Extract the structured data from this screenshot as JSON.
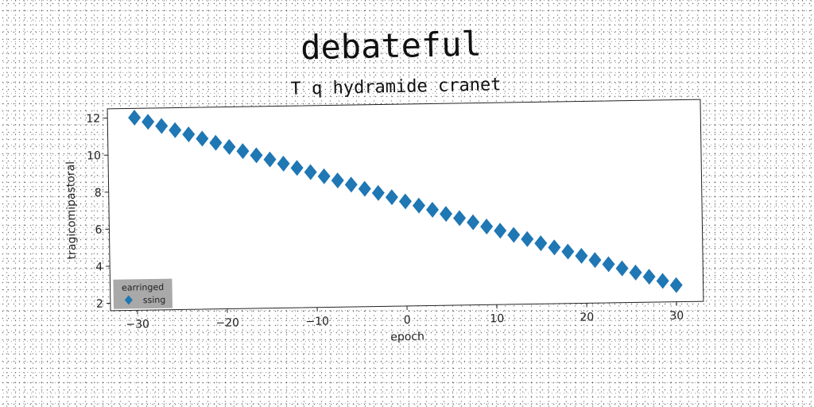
{
  "chart_data": {
    "type": "scatter",
    "title": "debateful",
    "subtitle": "T q hydramide cranet",
    "xlabel": "epoch",
    "ylabel": "tragicomipastoral",
    "xlim": [
      -33,
      33
    ],
    "ylim": [
      1.6,
      12.5
    ],
    "x_ticks": [
      -30,
      -20,
      -10,
      0,
      10,
      20,
      30
    ],
    "x_tick_labels": [
      "−30",
      "−20",
      "−10",
      "0",
      "10",
      "20",
      "30"
    ],
    "y_ticks": [
      2,
      4,
      6,
      8,
      10,
      12
    ],
    "y_tick_labels": [
      "2",
      "4",
      "6",
      "8",
      "10",
      "12"
    ],
    "grid": false,
    "marker": "diamond",
    "color": "#1f77b4",
    "legend": {
      "title": "earringed",
      "placement": "lower-left",
      "entries": [
        "ssing"
      ]
    },
    "series": [
      {
        "name": "ssing",
        "x_start": -30,
        "x_end": 30,
        "x_step": 1.5,
        "y_start": 12.0,
        "y_end": 2.5
      }
    ]
  }
}
